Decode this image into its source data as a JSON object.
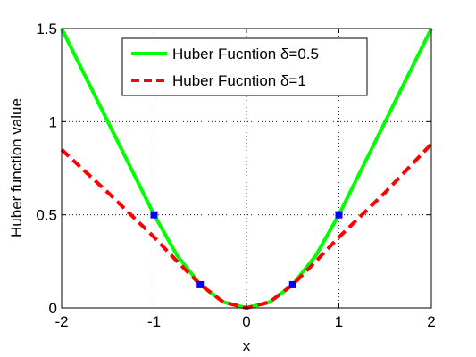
{
  "chart_data": {
    "type": "line",
    "title": "",
    "xlabel": "x",
    "ylabel": "Huber function value",
    "xlim": [
      -2,
      2
    ],
    "ylim": [
      0,
      1.5
    ],
    "xticks": [
      -2,
      -1,
      0,
      1,
      2
    ],
    "xtick_labels": [
      "-2",
      "-1",
      "0",
      "1",
      "2"
    ],
    "yticks": [
      0,
      0.5,
      1,
      1.5
    ],
    "ytick_labels": [
      "0",
      "0.5",
      "1",
      "1.5"
    ],
    "grid": true,
    "legend_position": "top-center",
    "series": [
      {
        "name": "Huber Fucntion  δ=0.5",
        "color": "#00ff00",
        "style": "solid",
        "x": [
          -2,
          -1.5,
          -1,
          -0.75,
          -0.5,
          -0.25,
          0,
          0.25,
          0.5,
          0.75,
          1,
          1.5,
          2
        ],
        "y": [
          1.5,
          1.0,
          0.5,
          0.28125,
          0.125,
          0.03125,
          0,
          0.03125,
          0.125,
          0.28125,
          0.5,
          1.0,
          1.5
        ]
      },
      {
        "name": "Huber Fucntion  δ=1",
        "color": "#ff0000",
        "style": "dashed",
        "x": [
          -2,
          -1.5,
          -1,
          -0.75,
          -0.5,
          -0.25,
          0,
          0.25,
          0.5,
          0.75,
          1,
          1.5,
          2
        ],
        "y": [
          0.85,
          0.62,
          0.38,
          0.25,
          0.125,
          0.03125,
          0,
          0.03125,
          0.125,
          0.25,
          0.38,
          0.62,
          0.88
        ]
      }
    ],
    "markers": {
      "color": "#0000ff",
      "points": [
        {
          "x": -1,
          "y": 0.5
        },
        {
          "x": -0.5,
          "y": 0.125
        },
        {
          "x": 0.5,
          "y": 0.125
        },
        {
          "x": 1,
          "y": 0.5
        }
      ]
    }
  }
}
